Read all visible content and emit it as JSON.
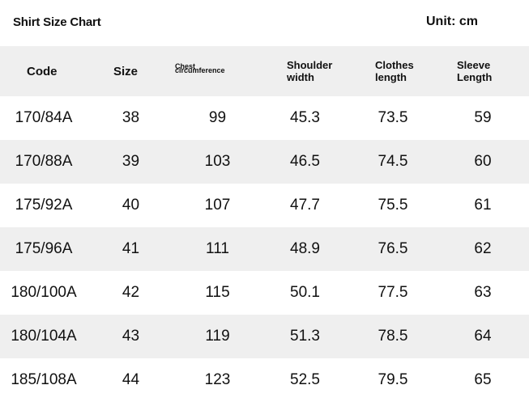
{
  "header": {
    "title": "Shirt Size Chart",
    "unit": "Unit: cm"
  },
  "table": {
    "columns": [
      "Code",
      "Size",
      "Chest circumference",
      "Shoulder width",
      "Clothes length",
      "Sleeve Length"
    ],
    "column_lines": [
      [
        "Code"
      ],
      [
        "Size"
      ],
      [
        "Chest",
        "circumference"
      ],
      [
        "Shoulder",
        "width"
      ],
      [
        "Clothes",
        "length"
      ],
      [
        "Sleeve",
        "Length"
      ]
    ],
    "rows": [
      [
        "170/84A",
        "38",
        "99",
        "45.3",
        "73.5",
        "59"
      ],
      [
        "170/88A",
        "39",
        "103",
        "46.5",
        "74.5",
        "60"
      ],
      [
        "175/92A",
        "40",
        "107",
        "47.7",
        "75.5",
        "61"
      ],
      [
        "175/96A",
        "41",
        "111",
        "48.9",
        "76.5",
        "62"
      ],
      [
        "180/100A",
        "42",
        "115",
        "50.1",
        "77.5",
        "63"
      ],
      [
        "180/104A",
        "43",
        "119",
        "51.3",
        "78.5",
        "64"
      ],
      [
        "185/108A",
        "44",
        "123",
        "52.5",
        "79.5",
        "65"
      ]
    ]
  },
  "colors": {
    "stripe": "#efefef",
    "background": "#ffffff",
    "text": "#111111"
  }
}
